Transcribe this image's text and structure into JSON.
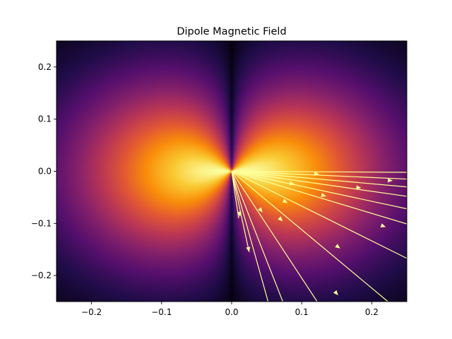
{
  "chart_data": {
    "type": "heatmap",
    "title": "Dipole Magnetic Field",
    "xlabel": "",
    "ylabel": "",
    "xlim": [
      -0.25,
      0.25
    ],
    "ylim": [
      -0.25,
      0.25
    ],
    "grid": false,
    "colormap": "inferno",
    "field": {
      "description_kind": "magnetic dipole magnitude",
      "dipole_axis": "y",
      "center": [
        0,
        0
      ]
    },
    "x_ticks": [
      "−0.2",
      "−0.1",
      "0.0",
      "0.1",
      "0.2"
    ],
    "x_tick_values": [
      -0.2,
      -0.1,
      0.0,
      0.1,
      0.2
    ],
    "y_ticks": [
      "−0.2",
      "−0.1",
      "0.0",
      "0.1",
      "0.2"
    ],
    "y_tick_values": [
      -0.2,
      -0.1,
      0.0,
      0.1,
      0.2
    ],
    "streamlines": {
      "color": "#ffff99",
      "origin": [
        0.0,
        0.0
      ],
      "endpoints": [
        [
          0.25,
          -0.002
        ],
        [
          0.25,
          -0.015
        ],
        [
          0.25,
          -0.03
        ],
        [
          0.25,
          -0.048
        ],
        [
          0.25,
          -0.072
        ],
        [
          0.25,
          -0.101
        ],
        [
          0.25,
          -0.167
        ],
        [
          0.223,
          -0.25
        ],
        [
          0.122,
          -0.25
        ],
        [
          0.073,
          -0.25
        ],
        [
          0.052,
          -0.25
        ],
        [
          0.01,
          -0.09
        ],
        [
          0.025,
          -0.155
        ]
      ],
      "arrowheads": [
        [
          0.23,
          -0.018
        ],
        [
          0.185,
          -0.032
        ],
        [
          0.135,
          -0.048
        ],
        [
          0.08,
          -0.061
        ],
        [
          0.22,
          -0.107
        ],
        [
          0.155,
          -0.148
        ],
        [
          0.152,
          -0.238
        ],
        [
          0.073,
          -0.096
        ],
        [
          0.044,
          -0.079
        ],
        [
          0.025,
          -0.155
        ],
        [
          0.012,
          -0.087
        ],
        [
          0.125,
          -0.005
        ],
        [
          0.09,
          -0.025
        ]
      ]
    }
  }
}
